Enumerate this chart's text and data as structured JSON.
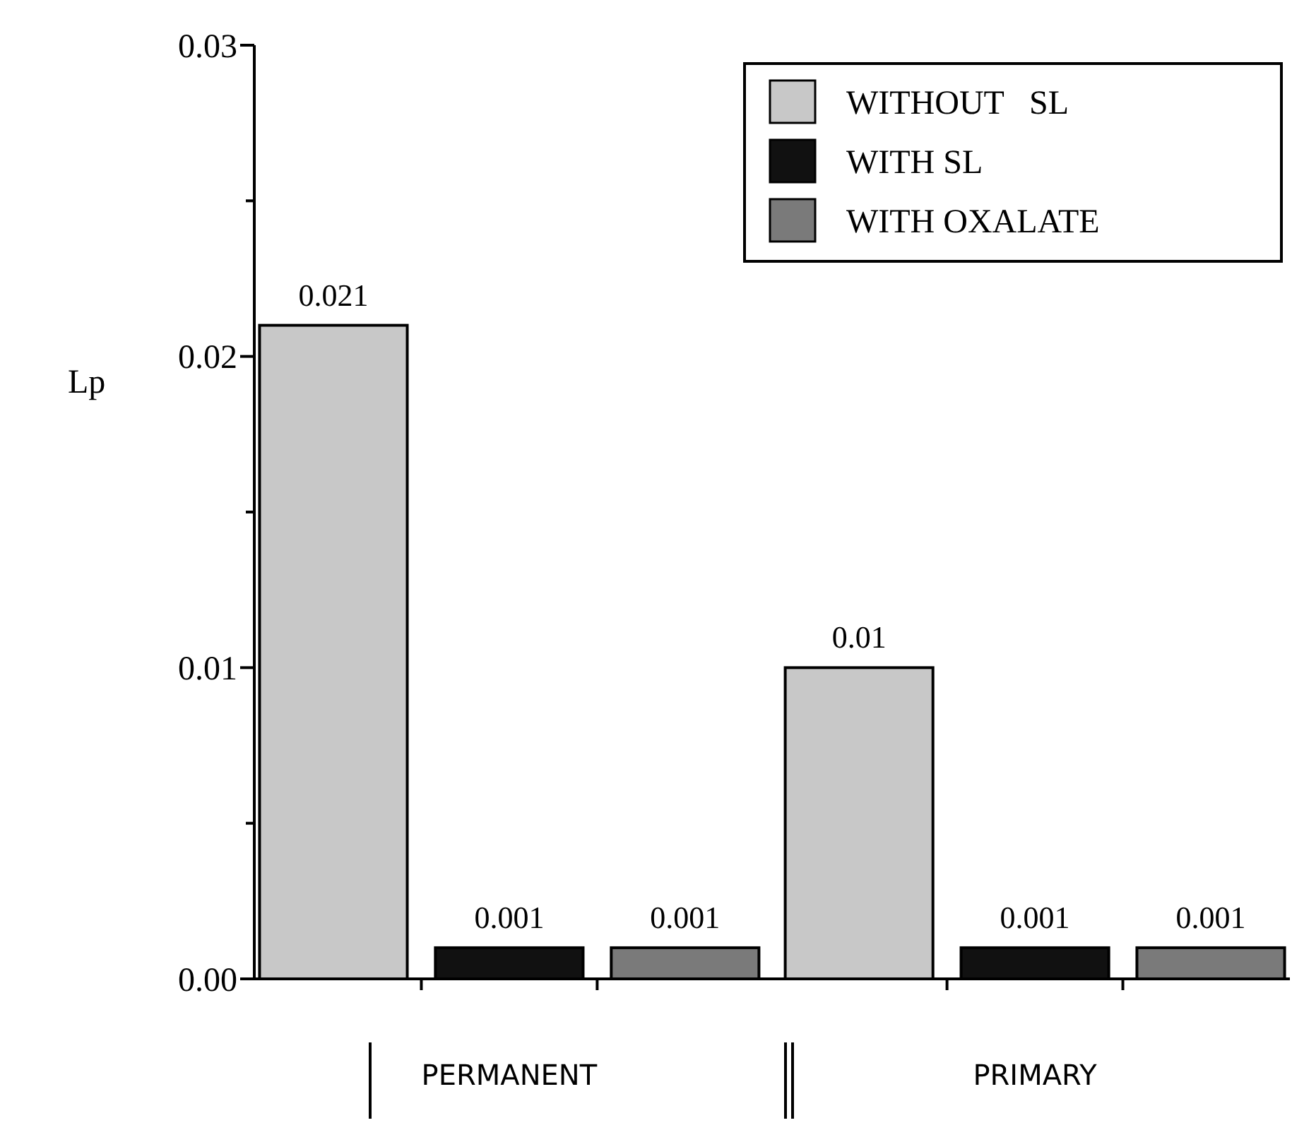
{
  "chart_data": {
    "type": "bar",
    "ylabel": "Lp",
    "categories": [
      "PERMANENT",
      "PRIMARY"
    ],
    "series": [
      {
        "name": "WITHOUT   SL",
        "color": "#c8c8c8",
        "values": [
          0.021,
          0.01
        ]
      },
      {
        "name": "WITH SL",
        "color": "#111111",
        "values": [
          0.001,
          0.001
        ]
      },
      {
        "name": "WITH OXALATE",
        "color": "#7a7a7a",
        "values": [
          0.001,
          0.001
        ]
      }
    ],
    "ylim": [
      0,
      0.03
    ],
    "yticks": [
      {
        "value": 0,
        "label": "0.00"
      },
      {
        "value": 0.005,
        "label": null
      },
      {
        "value": 0.01,
        "label": "0.01"
      },
      {
        "value": 0.015,
        "label": null
      },
      {
        "value": 0.02,
        "label": "0.02"
      },
      {
        "value": 0.025,
        "label": null
      },
      {
        "value": 0.03,
        "label": "0.03"
      }
    ],
    "data_labels": true,
    "legend": "top right",
    "grid": false
  }
}
